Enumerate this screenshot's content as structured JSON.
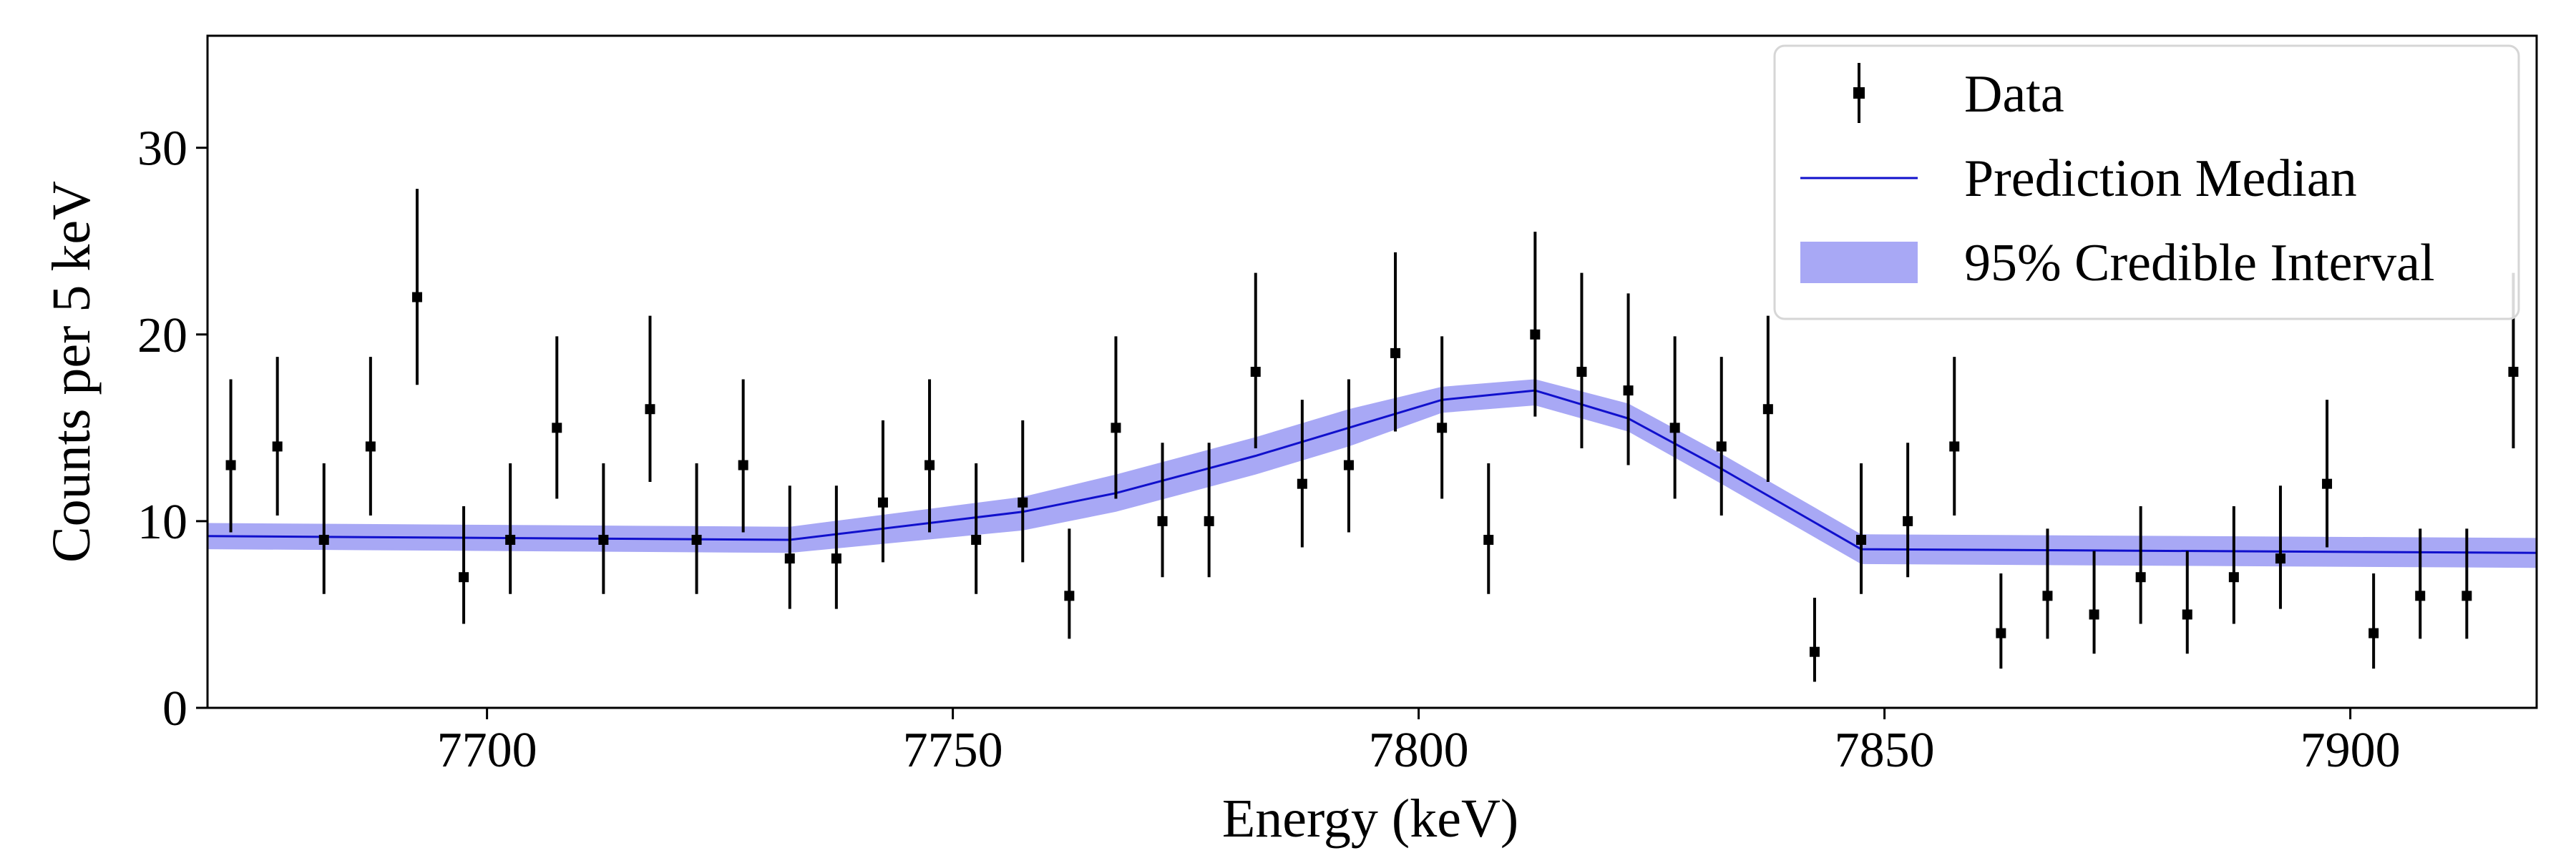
{
  "chart_data": {
    "type": "scatter",
    "title": "",
    "xlabel": "Energy (keV)",
    "ylabel": "Counts per 5 keV",
    "xlim": [
      7670,
      7920
    ],
    "ylim": [
      0,
      36
    ],
    "xticks": [
      7700,
      7750,
      7800,
      7850,
      7900
    ],
    "yticks": [
      0,
      10,
      20,
      30
    ],
    "grid": false,
    "legend_position": "top-right",
    "legend": [
      "Data",
      "Prediction Median",
      "95% Credible Interval"
    ],
    "colors": {
      "data": "#000000",
      "median": "#1010cc",
      "band": "#a8a8f5"
    },
    "series": [
      {
        "name": "Data",
        "kind": "errorbar",
        "x": [
          7672.5,
          7677.5,
          7682.5,
          7687.5,
          7692.5,
          7697.5,
          7702.5,
          7707.5,
          7712.5,
          7717.5,
          7722.5,
          7727.5,
          7732.5,
          7737.5,
          7742.5,
          7747.5,
          7752.5,
          7757.5,
          7762.5,
          7767.5,
          7772.5,
          7777.5,
          7782.5,
          7787.5,
          7792.5,
          7797.5,
          7802.5,
          7807.5,
          7812.5,
          7817.5,
          7822.5,
          7827.5,
          7832.5,
          7837.5,
          7842.5,
          7847.5,
          7852.5,
          7857.5,
          7862.5,
          7867.5,
          7872.5,
          7877.5,
          7882.5,
          7887.5,
          7892.5,
          7897.5,
          7902.5,
          7907.5,
          7912.5,
          7917.5
        ],
        "y": [
          13,
          14,
          9,
          14,
          22,
          7,
          9,
          15,
          9,
          16,
          9,
          13,
          8,
          8,
          11,
          13,
          9,
          11,
          6,
          15,
          10,
          10,
          18,
          12,
          13,
          19,
          15,
          9,
          20,
          18,
          17,
          15,
          14,
          16,
          3,
          9,
          10,
          14,
          4,
          6,
          5,
          7,
          5,
          7,
          8,
          12,
          4,
          6,
          6,
          18
        ],
        "y_low": [
          9.4,
          10.3,
          6.1,
          10.3,
          17.3,
          4.5,
          6.1,
          11.2,
          6.1,
          12.1,
          6.1,
          9.4,
          5.3,
          5.3,
          7.8,
          9.4,
          6.1,
          7.8,
          3.7,
          11.2,
          7.0,
          7.0,
          13.9,
          8.6,
          9.4,
          14.8,
          11.2,
          6.1,
          15.6,
          13.9,
          13.0,
          11.2,
          10.3,
          12.1,
          1.4,
          6.1,
          7.0,
          10.3,
          2.1,
          3.7,
          2.9,
          4.5,
          2.9,
          4.5,
          5.3,
          8.6,
          2.1,
          3.7,
          3.7,
          13.9
        ],
        "y_high": [
          17.6,
          18.8,
          13.1,
          18.8,
          27.8,
          10.8,
          13.1,
          19.9,
          13.1,
          21.0,
          13.1,
          17.6,
          11.9,
          11.9,
          15.4,
          17.6,
          13.1,
          15.4,
          9.6,
          19.9,
          14.2,
          14.2,
          23.3,
          16.5,
          17.6,
          24.4,
          19.9,
          13.1,
          25.5,
          23.3,
          22.2,
          19.9,
          18.8,
          21.0,
          5.9,
          13.1,
          14.2,
          18.8,
          7.2,
          9.6,
          8.4,
          10.8,
          8.4,
          10.8,
          11.9,
          16.5,
          7.2,
          9.6,
          9.6,
          23.3
        ]
      },
      {
        "name": "Prediction Median",
        "kind": "line",
        "x": [
          7670,
          7732.5,
          7757.5,
          7767.5,
          7782.5,
          7792.5,
          7802.5,
          7812.5,
          7822.5,
          7832.5,
          7847.5,
          7920
        ],
        "y": [
          9.2,
          9.0,
          10.5,
          11.5,
          13.5,
          15.0,
          16.5,
          17.0,
          15.5,
          12.8,
          8.5,
          8.3
        ]
      },
      {
        "name": "95% Credible Interval",
        "kind": "band",
        "x": [
          7670,
          7732.5,
          7757.5,
          7767.5,
          7782.5,
          7792.5,
          7802.5,
          7812.5,
          7822.5,
          7832.5,
          7847.5,
          7920
        ],
        "y_low": [
          8.5,
          8.3,
          9.5,
          10.5,
          12.5,
          14.0,
          15.8,
          16.2,
          14.8,
          12.0,
          7.7,
          7.5
        ],
        "y_high": [
          9.9,
          9.7,
          11.3,
          12.5,
          14.5,
          16.0,
          17.2,
          17.6,
          16.3,
          13.6,
          9.3,
          9.1
        ]
      }
    ]
  }
}
